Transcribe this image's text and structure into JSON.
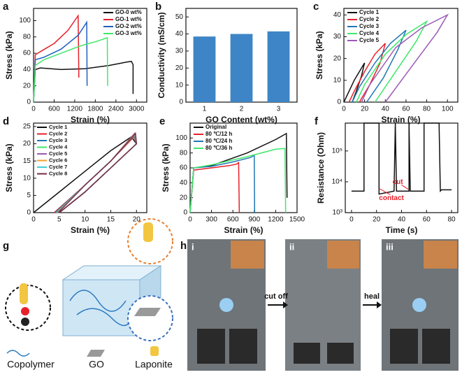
{
  "chart_data": [
    {
      "type": "line",
      "panel": "a",
      "xlabel": "Strain (%)",
      "ylabel": "Stress (kPa)",
      "xlim": [
        0,
        3300
      ],
      "xticks": [
        0,
        600,
        1200,
        1800,
        2400,
        3000
      ],
      "ylim": [
        0,
        115
      ],
      "yticks": [
        0,
        20,
        40,
        60,
        80,
        100
      ],
      "legend": "upper right",
      "series": [
        {
          "name": "GO-0 wt%",
          "color": "#111111",
          "x": [
            0,
            50,
            200,
            800,
            1500,
            2200,
            2700,
            2850,
            2900,
            2900
          ],
          "values": [
            0,
            40,
            42,
            40,
            41,
            45,
            49,
            50,
            46,
            10
          ]
        },
        {
          "name": "GO-1 wt%",
          "color": "#e8202a",
          "x": [
            0,
            50,
            200,
            600,
            1000,
            1300,
            1320
          ],
          "values": [
            0,
            58,
            62,
            72,
            88,
            106,
            30
          ]
        },
        {
          "name": "GO-2 wt%",
          "color": "#1f5fbf",
          "x": [
            0,
            50,
            300,
            800,
            1300,
            1550,
            1560
          ],
          "values": [
            0,
            52,
            55,
            65,
            82,
            98,
            20
          ]
        },
        {
          "name": "GO-3 wt%",
          "color": "#3ee86a",
          "x": [
            0,
            50,
            300,
            800,
            1300,
            1600,
            1800,
            2150,
            2160
          ],
          "values": [
            0,
            45,
            52,
            60,
            68,
            72,
            74,
            79,
            20
          ]
        }
      ]
    },
    {
      "type": "bar",
      "panel": "b",
      "xlabel": "GO Content (wt%)",
      "ylabel": "Conductivity (mS/cm)",
      "categories": [
        "1",
        "2",
        "3"
      ],
      "values": [
        38.5,
        40,
        41.5
      ],
      "color": "#3d85c6",
      "ylim": [
        0,
        55
      ],
      "yticks": [
        0,
        10,
        20,
        30,
        40,
        50
      ]
    },
    {
      "type": "line",
      "panel": "c",
      "xlabel": "Strain (%)",
      "ylabel": "Stress (kPa)",
      "xlim": [
        0,
        110
      ],
      "xticks": [
        0,
        20,
        40,
        60,
        80,
        100
      ],
      "ylim": [
        0,
        43
      ],
      "yticks": [
        0,
        10,
        20,
        30,
        40
      ],
      "legend": "upper left",
      "series": [
        {
          "name": "Cycle 1",
          "color": "#111111",
          "x": [
            0,
            5,
            10,
            15,
            20,
            17,
            12,
            8
          ],
          "values": [
            0,
            5,
            10,
            14,
            18,
            12,
            5,
            0
          ]
        },
        {
          "name": "Cycle 2",
          "color": "#e8202a",
          "x": [
            5,
            10,
            20,
            30,
            40,
            35,
            25,
            15
          ],
          "values": [
            0,
            5,
            14,
            22,
            27,
            18,
            8,
            0
          ]
        },
        {
          "name": "Cycle 3",
          "color": "#1f77b4",
          "x": [
            8,
            15,
            30,
            45,
            60,
            52,
            38,
            22
          ],
          "values": [
            0,
            7,
            18,
            27,
            33,
            24,
            11,
            0
          ]
        },
        {
          "name": "Cycle 4",
          "color": "#3ee86a",
          "x": [
            12,
            20,
            40,
            60,
            80,
            70,
            50,
            30
          ],
          "values": [
            0,
            8,
            22,
            31,
            37,
            28,
            14,
            0
          ]
        },
        {
          "name": "Cycle 5",
          "color": "#9b59b6",
          "x": [
            17,
            25,
            50,
            75,
            100,
            90,
            65,
            40
          ],
          "values": [
            0,
            8,
            25,
            34,
            40,
            32,
            16,
            0
          ]
        }
      ]
    },
    {
      "type": "line",
      "panel": "d",
      "xlabel": "Strain (%)",
      "ylabel": "Stress (kPa)",
      "xlim": [
        0,
        22
      ],
      "xticks": [
        0,
        5,
        10,
        15,
        20
      ],
      "ylim": [
        0,
        26
      ],
      "yticks": [
        0,
        5,
        10,
        15,
        20,
        25
      ],
      "legend": "upper left",
      "series": [
        {
          "name": "Cycle 1",
          "color": "#111111",
          "x": [
            0,
            5,
            10,
            15,
            19,
            20,
            15,
            10,
            5
          ],
          "values": [
            0,
            6,
            12,
            18,
            22,
            20,
            13,
            6,
            0
          ]
        },
        {
          "name": "Cycle 2",
          "color": "#e8202a",
          "x": [
            4,
            10,
            15,
            19.5,
            20,
            15,
            10,
            5
          ],
          "values": [
            0,
            8,
            15,
            22,
            20,
            13,
            6,
            0
          ]
        },
        {
          "name": "Cycle 3",
          "color": "#1f77b4",
          "x": [
            4.2,
            10,
            15,
            19.5,
            20,
            15,
            10,
            5
          ],
          "values": [
            0,
            8,
            15,
            22.5,
            20,
            13,
            6,
            0
          ]
        },
        {
          "name": "Cycle 4",
          "color": "#3ee86a",
          "x": [
            4.4,
            10,
            15,
            19.6,
            20,
            15,
            10,
            5
          ],
          "values": [
            0,
            8,
            15,
            22.5,
            20,
            13,
            6,
            0
          ]
        },
        {
          "name": "Cycle 5",
          "color": "#9b59b6",
          "x": [
            4.5,
            10,
            15,
            19.6,
            20,
            15,
            10,
            5
          ],
          "values": [
            0,
            8,
            15,
            23,
            20,
            13,
            6,
            0
          ]
        },
        {
          "name": "Cycle 6",
          "color": "#f0a030",
          "x": [
            4.6,
            10,
            15,
            19.7,
            20,
            15,
            10,
            5
          ],
          "values": [
            0,
            8,
            15,
            23,
            20,
            13,
            6,
            0
          ]
        },
        {
          "name": "Cycle 7",
          "color": "#40d0d0",
          "x": [
            4.7,
            10,
            15,
            19.8,
            20,
            15,
            10,
            5
          ],
          "values": [
            0,
            8,
            15,
            23,
            20,
            13,
            6,
            0
          ]
        },
        {
          "name": "Cycle 8",
          "color": "#7a2a4a",
          "x": [
            4.8,
            10,
            15,
            19.8,
            20,
            15,
            10,
            5
          ],
          "values": [
            0,
            8,
            15,
            23,
            20,
            13,
            6,
            0
          ]
        }
      ]
    },
    {
      "type": "line",
      "panel": "e",
      "xlabel": "Strain (%)",
      "ylabel": "Stress (kPa)",
      "xlim": [
        0,
        1500
      ],
      "xticks": [
        0,
        300,
        600,
        900,
        1200,
        1500
      ],
      "ylim": [
        0,
        120
      ],
      "yticks": [
        0,
        20,
        40,
        60,
        80,
        100
      ],
      "legend": "upper left",
      "series": [
        {
          "name": "Original",
          "color": "#111111",
          "x": [
            0,
            50,
            300,
            800,
            1200,
            1350,
            1360
          ],
          "values": [
            0,
            60,
            63,
            80,
            98,
            106,
            20
          ]
        },
        {
          "name": "80 ℃/12 h",
          "color": "#e8202a",
          "x": [
            0,
            50,
            300,
            550,
            650,
            680,
            690
          ],
          "values": [
            0,
            57,
            60,
            63,
            65,
            67,
            0
          ]
        },
        {
          "name": "80 ℃/24 h",
          "color": "#1f77b4",
          "x": [
            0,
            50,
            300,
            600,
            850,
            900,
            905
          ],
          "values": [
            0,
            60,
            62,
            68,
            74,
            77,
            0
          ]
        },
        {
          "name": "80 ℃/36 h",
          "color": "#3ee86a",
          "x": [
            0,
            50,
            300,
            800,
            1200,
            1330,
            1340
          ],
          "values": [
            0,
            60,
            64,
            75,
            85,
            86,
            0
          ]
        }
      ]
    },
    {
      "type": "line",
      "panel": "f",
      "xlabel": "Time (s)",
      "ylabel": "Resistance (Ohm)",
      "log_y": true,
      "xlim": [
        -5,
        85
      ],
      "xticks": [
        0,
        20,
        40,
        60,
        80
      ],
      "ylim": [
        1000,
        800000
      ],
      "yticks": [
        {
          "value": 1000,
          "label": "10³"
        },
        {
          "value": 10000,
          "label": "10⁴"
        },
        {
          "value": 100000,
          "label": "10⁵"
        }
      ],
      "annotations": [
        "cut",
        "contact"
      ],
      "series": [
        {
          "color": "#111111",
          "x": [
            0,
            10,
            10,
            22,
            22,
            34,
            35,
            36,
            46,
            46,
            47,
            58,
            58,
            70,
            71,
            72,
            80
          ],
          "values": [
            5000,
            5000,
            800000,
            800000,
            4000,
            5000,
            800000,
            5000,
            5000,
            800000,
            5000,
            5000,
            800000,
            800000,
            5000,
            5500,
            5500
          ]
        }
      ]
    }
  ],
  "diagram": {
    "panel": "g",
    "labels": [
      "Copolymer",
      "GO",
      "Laponite"
    ]
  },
  "photos": {
    "panel": "h",
    "steps": [
      "i",
      "ii",
      "iii"
    ],
    "actions": [
      "cut off",
      "heal"
    ]
  }
}
